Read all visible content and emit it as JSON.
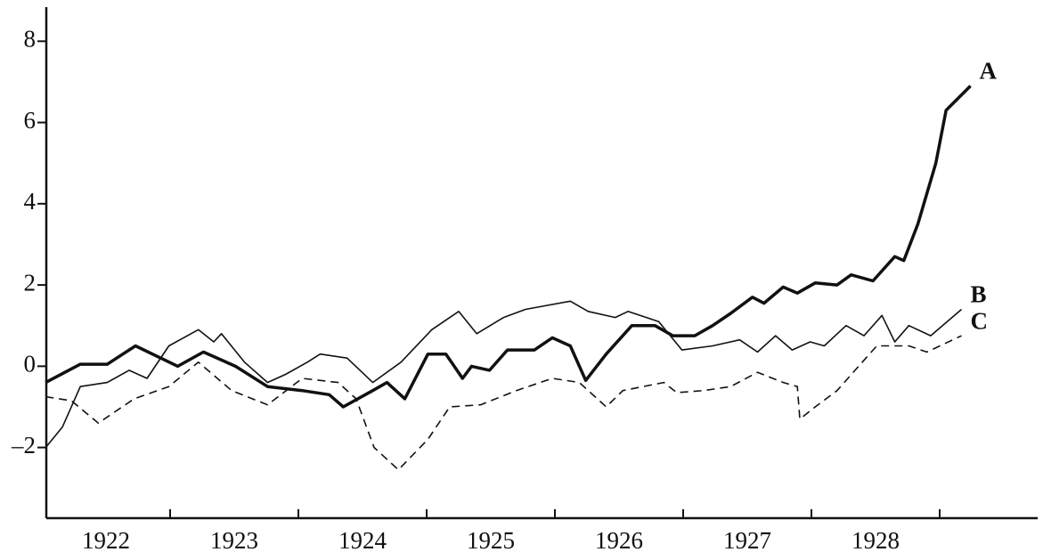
{
  "chart_data": {
    "type": "line",
    "xlim": [
      1922,
      1929.8
    ],
    "ylim": [
      -3.74,
      8.84
    ],
    "yticks": [
      {
        "value": -2,
        "label": "–2"
      },
      0,
      2,
      4,
      6,
      8
    ],
    "xticks": [
      {
        "value": 1922.5,
        "label": "1922"
      },
      {
        "value": 1923.5,
        "label": "1923"
      },
      {
        "value": 1924.5,
        "label": "1924"
      },
      {
        "value": 1925.5,
        "label": "1925"
      },
      {
        "value": 1926.5,
        "label": "1926"
      },
      {
        "value": 1927.5,
        "label": "1927"
      },
      {
        "value": 1928.5,
        "label": "1928"
      }
    ],
    "minor_xticks": [
      1923,
      1924,
      1925,
      1926,
      1927,
      1928,
      1929
    ],
    "series": [
      {
        "name": "A",
        "color": "#111111",
        "style": "thick",
        "x": [
          1922.03,
          1922.3,
          1922.51,
          1922.73,
          1923.06,
          1923.26,
          1923.51,
          1923.76,
          1924.03,
          1924.24,
          1924.35,
          1924.58,
          1924.69,
          1924.83,
          1925.01,
          1925.15,
          1925.28,
          1925.35,
          1925.49,
          1925.63,
          1925.84,
          1925.98,
          1926.12,
          1926.24,
          1926.4,
          1926.6,
          1926.78,
          1926.92,
          1927.09,
          1927.23,
          1927.37,
          1927.54,
          1927.63,
          1927.78,
          1927.89,
          1928.03,
          1928.2,
          1928.31,
          1928.48,
          1928.65,
          1928.72,
          1928.83,
          1928.97,
          1929.05,
          1929.24
        ],
        "values": [
          -0.4,
          0.05,
          0.05,
          0.5,
          0,
          0.35,
          0,
          -0.5,
          -0.6,
          -0.7,
          -1.0,
          -0.6,
          -0.4,
          -0.8,
          0.3,
          0.3,
          -0.3,
          0.0,
          -0.1,
          0.4,
          0.4,
          0.7,
          0.5,
          -0.35,
          0.3,
          1.0,
          1.0,
          0.75,
          0.75,
          1.0,
          1.3,
          1.7,
          1.55,
          1.95,
          1.8,
          2.05,
          2.0,
          2.25,
          2.1,
          2.7,
          2.6,
          3.5,
          5.0,
          6.3,
          6.9
        ]
      },
      {
        "name": "B",
        "color": "#111111",
        "style": "thin",
        "x": [
          1922.03,
          1922.16,
          1922.3,
          1922.51,
          1922.68,
          1922.82,
          1922.99,
          1923.22,
          1923.34,
          1923.4,
          1923.58,
          1923.76,
          1923.9,
          1924.07,
          1924.17,
          1924.38,
          1924.58,
          1924.8,
          1925.04,
          1925.25,
          1925.39,
          1925.6,
          1925.77,
          1926.12,
          1926.26,
          1926.47,
          1926.57,
          1926.81,
          1926.99,
          1927.23,
          1927.44,
          1927.58,
          1927.72,
          1927.85,
          1927.99,
          1928.1,
          1928.27,
          1928.41,
          1928.55,
          1928.65,
          1928.76,
          1928.93,
          1929.17
        ],
        "values": [
          -2.0,
          -1.5,
          -0.5,
          -0.4,
          -0.1,
          -0.3,
          0.5,
          0.9,
          0.6,
          0.8,
          0.1,
          -0.4,
          -0.2,
          0.1,
          0.3,
          0.2,
          -0.4,
          0.1,
          0.9,
          1.35,
          0.8,
          1.2,
          1.4,
          1.6,
          1.35,
          1.2,
          1.35,
          1.1,
          0.4,
          0.5,
          0.65,
          0.35,
          0.75,
          0.4,
          0.6,
          0.5,
          1.0,
          0.75,
          1.25,
          0.6,
          1.0,
          0.75,
          1.4
        ]
      },
      {
        "name": "C",
        "color": "#111111",
        "style": "dashed",
        "x": [
          1922.03,
          1922.23,
          1922.44,
          1922.72,
          1922.99,
          1923.22,
          1923.48,
          1923.76,
          1924.03,
          1924.31,
          1924.45,
          1924.59,
          1924.78,
          1925.01,
          1925.18,
          1925.42,
          1925.7,
          1925.98,
          1926.19,
          1926.4,
          1926.53,
          1926.85,
          1926.95,
          1927.16,
          1927.37,
          1927.58,
          1927.78,
          1927.89,
          1927.91,
          1928.03,
          1928.2,
          1928.34,
          1928.51,
          1928.76,
          1928.9,
          1929.17
        ],
        "values": [
          -0.75,
          -0.85,
          -1.4,
          -0.8,
          -0.5,
          0.1,
          -0.6,
          -0.95,
          -0.3,
          -0.4,
          -0.8,
          -2.0,
          -2.55,
          -1.8,
          -1.0,
          -0.95,
          -0.6,
          -0.3,
          -0.4,
          -1.0,
          -0.6,
          -0.4,
          -0.65,
          -0.6,
          -0.5,
          -0.15,
          -0.4,
          -0.5,
          -1.3,
          -1.0,
          -0.6,
          -0.1,
          0.5,
          0.5,
          0.35,
          0.75
        ]
      }
    ]
  }
}
